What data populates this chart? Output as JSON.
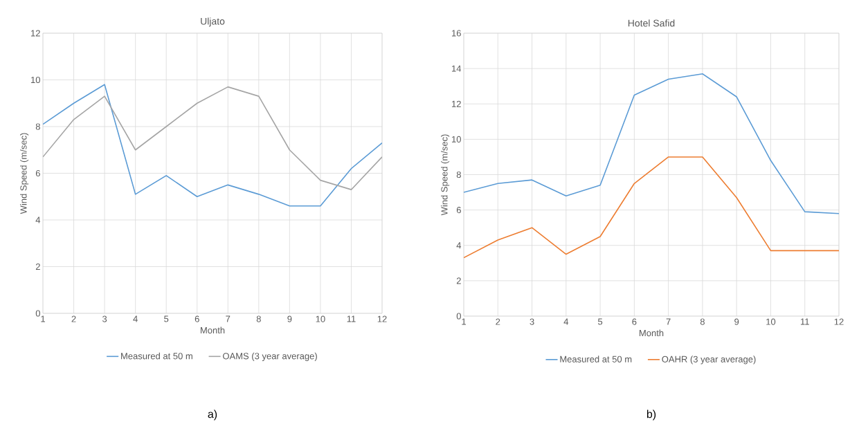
{
  "chart_data": [
    {
      "type": "line",
      "title": "Uljato",
      "xlabel": "Month",
      "ylabel": "Wind Speed (m/sec)",
      "x": [
        1,
        2,
        3,
        4,
        5,
        6,
        7,
        8,
        9,
        10,
        11,
        12
      ],
      "xlim": [
        1,
        12
      ],
      "xticks": [
        1,
        2,
        3,
        4,
        5,
        6,
        7,
        8,
        9,
        10,
        11,
        12
      ],
      "ylim": [
        0,
        12
      ],
      "yticks": [
        0,
        2,
        4,
        6,
        8,
        10,
        12
      ],
      "grid": true,
      "legend": "bottom",
      "annotations": [
        "a)"
      ],
      "series": [
        {
          "name": "Measured at 50 m",
          "color": "#5b9bd5",
          "values": [
            8.1,
            9.0,
            9.8,
            5.1,
            5.9,
            5.0,
            5.5,
            5.1,
            4.6,
            4.6,
            6.2,
            7.3
          ]
        },
        {
          "name": "OAMS (3 year average)",
          "color": "#a5a5a5",
          "values": [
            6.7,
            8.3,
            9.3,
            7.0,
            8.0,
            9.0,
            9.7,
            9.3,
            7.0,
            5.7,
            5.3,
            6.7
          ]
        }
      ]
    },
    {
      "type": "line",
      "title": "Hotel Safid",
      "xlabel": "Month",
      "ylabel": "Wind Speed (m/sec)",
      "x": [
        1,
        2,
        3,
        4,
        5,
        6,
        7,
        8,
        9,
        10,
        11,
        12
      ],
      "xlim": [
        1,
        12
      ],
      "xticks": [
        1,
        2,
        3,
        4,
        5,
        6,
        7,
        8,
        9,
        10,
        11,
        12
      ],
      "ylim": [
        0,
        16
      ],
      "yticks": [
        0,
        2,
        4,
        6,
        8,
        10,
        12,
        14,
        16
      ],
      "grid": true,
      "legend": "bottom",
      "annotations": [
        "b)"
      ],
      "series": [
        {
          "name": "Measured at 50 m",
          "color": "#5b9bd5",
          "values": [
            7.0,
            7.5,
            7.7,
            6.8,
            7.4,
            12.5,
            13.4,
            13.7,
            12.4,
            8.8,
            5.9,
            5.8
          ]
        },
        {
          "name": "OAHR (3 year average)",
          "color": "#ed7d31",
          "values": [
            3.3,
            4.3,
            5.0,
            3.5,
            4.5,
            7.5,
            9.0,
            9.0,
            6.7,
            3.7,
            3.7,
            3.7
          ]
        }
      ]
    }
  ]
}
